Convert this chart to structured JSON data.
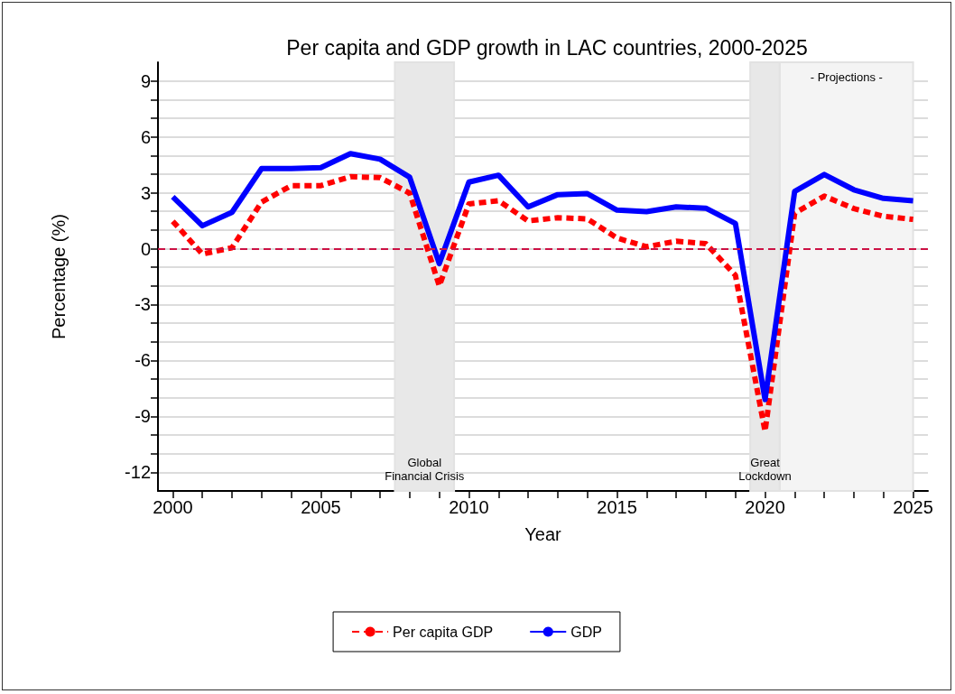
{
  "chart_data": {
    "type": "line",
    "title": "Per capita and GDP growth in LAC countries, 2000-2025",
    "xlabel": "Year",
    "ylabel": "Percentage (%)",
    "x": [
      2000,
      2001,
      2002,
      2003,
      2004,
      2005,
      2006,
      2007,
      2008,
      2009,
      2010,
      2011,
      2012,
      2013,
      2014,
      2015,
      2016,
      2017,
      2018,
      2019,
      2020,
      2021,
      2022,
      2023,
      2024,
      2025
    ],
    "series": [
      {
        "name": "Per capita GDP",
        "color": "#ff0000",
        "line_style": "dashed",
        "values": [
          1.47,
          -0.29,
          0.05,
          2.5,
          3.38,
          3.38,
          3.86,
          3.81,
          2.98,
          -2.0,
          2.4,
          2.57,
          1.49,
          1.66,
          1.6,
          0.57,
          0.1,
          0.4,
          0.27,
          -1.43,
          -9.8,
          1.9,
          2.82,
          2.15,
          1.74,
          1.57
        ]
      },
      {
        "name": "GDP",
        "color": "#0000ff",
        "line_style": "solid",
        "values": [
          2.78,
          1.23,
          1.95,
          4.3,
          4.3,
          4.35,
          5.1,
          4.8,
          3.83,
          -0.8,
          3.57,
          3.94,
          2.24,
          2.9,
          2.95,
          2.07,
          1.99,
          2.24,
          2.17,
          1.35,
          -8.1,
          3.07,
          3.98,
          3.16,
          2.7,
          2.57
        ]
      }
    ],
    "xlim": [
      1999.5,
      2025.5
    ],
    "xticks": [
      2000,
      {
        "value": 2001,
        "label": null
      },
      {
        "value": 2002,
        "label": null
      },
      {
        "value": 2003,
        "label": null
      },
      {
        "value": 2004,
        "label": null
      },
      2005,
      {
        "value": 2006,
        "label": null
      },
      {
        "value": 2007,
        "label": null
      },
      {
        "value": 2008,
        "label": null
      },
      {
        "value": 2009,
        "label": null
      },
      2010,
      {
        "value": 2011,
        "label": null
      },
      {
        "value": 2012,
        "label": null
      },
      {
        "value": 2013,
        "label": null
      },
      {
        "value": 2014,
        "label": null
      },
      2015,
      {
        "value": 2016,
        "label": null
      },
      {
        "value": 2017,
        "label": null
      },
      {
        "value": 2018,
        "label": null
      },
      {
        "value": 2019,
        "label": null
      },
      2020,
      {
        "value": 2021,
        "label": null
      },
      {
        "value": 2022,
        "label": null
      },
      {
        "value": 2023,
        "label": null
      },
      {
        "value": 2024,
        "label": null
      },
      2025
    ],
    "ylim": [
      -13,
      10
    ],
    "yticks": [
      -12,
      {
        "value": -11,
        "label": null
      },
      {
        "value": -10,
        "label": null
      },
      -9,
      {
        "value": -8,
        "label": null
      },
      {
        "value": -7,
        "label": null
      },
      -6,
      {
        "value": -5,
        "label": null
      },
      {
        "value": -4,
        "label": null
      },
      -3,
      {
        "value": -2,
        "label": null
      },
      {
        "value": -1,
        "label": null
      },
      0,
      {
        "value": 1,
        "label": null
      },
      {
        "value": 2,
        "label": null
      },
      3,
      {
        "value": 4,
        "label": null
      },
      {
        "value": 5,
        "label": null
      },
      6,
      {
        "value": 7,
        "label": null
      },
      {
        "value": 8,
        "label": null
      },
      9
    ],
    "grid": "y",
    "marker": "none",
    "legend": "bottom",
    "ref_lines": [
      {
        "axis": "y",
        "value": 0,
        "color": "#cc1144",
        "line_style": "dashed"
      }
    ],
    "bands": [
      {
        "axis": "x",
        "from": 2007.5,
        "to": 2009.5,
        "label": "Global\nFinancial Crisis",
        "color": "#e8e8e8"
      },
      {
        "axis": "x",
        "from": 2019.5,
        "to": 2020.5,
        "label": "Great\nLockdown",
        "color": "#e8e8e8"
      },
      {
        "axis": "x",
        "from": 2020.5,
        "to": 2025,
        "label": "- Projections -",
        "color": "#f4f4f4"
      }
    ]
  }
}
